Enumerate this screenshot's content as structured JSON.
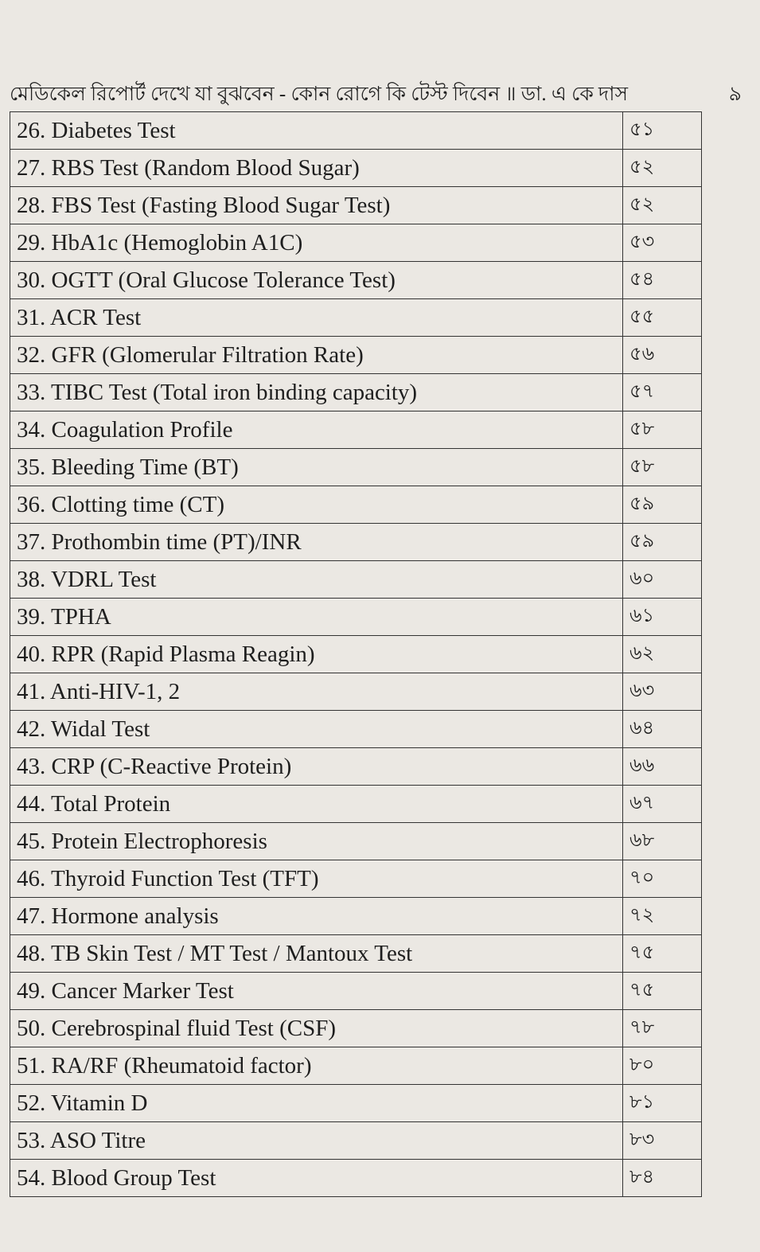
{
  "header": {
    "title": "মেডিকেল রিপোর্ট দেখে যা বুঝবেন - কোন রোগে কি টেস্ট দিবেন ॥ ডা. এ কে দাস",
    "page": "৯"
  },
  "table": {
    "rows": [
      [
        "26. Diabetes Test",
        "৫১"
      ],
      [
        "27. RBS Test (Random Blood Sugar)",
        "৫২"
      ],
      [
        "28. FBS Test (Fasting Blood Sugar Test)",
        "৫২"
      ],
      [
        "29. HbA1c (Hemoglobin A1C)",
        "৫৩"
      ],
      [
        "30. OGTT (Oral Glucose Tolerance Test)",
        "৫৪"
      ],
      [
        "31. ACR Test",
        "৫৫"
      ],
      [
        "32. GFR (Glomerular Filtration Rate)",
        "৫৬"
      ],
      [
        "33. TIBC Test (Total iron binding capacity)",
        "৫৭"
      ],
      [
        "34. Coagulation Profile",
        "৫৮"
      ],
      [
        "35. Bleeding Time (BT)",
        "৫৮"
      ],
      [
        "36. Clotting time (CT)",
        "৫৯"
      ],
      [
        "37. Prothombin time (PT)/INR",
        "৫৯"
      ],
      [
        "38. VDRL Test",
        "৬০"
      ],
      [
        "39. TPHA",
        "৬১"
      ],
      [
        "40. RPR (Rapid Plasma Reagin)",
        "৬২"
      ],
      [
        "41. Anti-HIV-1, 2",
        "৬৩"
      ],
      [
        "42. Widal Test",
        "৬৪"
      ],
      [
        "43. CRP (C-Reactive Protein)",
        "৬৬"
      ],
      [
        "44. Total Protein",
        "৬৭"
      ],
      [
        "45. Protein Electrophoresis",
        "৬৮"
      ],
      [
        "46. Thyroid Function Test (TFT)",
        "৭০"
      ],
      [
        "47. Hormone analysis",
        "৭২"
      ],
      [
        "48. TB Skin Test / MT Test / Mantoux Test",
        "৭৫"
      ],
      [
        "49. Cancer Marker Test",
        "৭৫"
      ],
      [
        "50. Cerebrospinal fluid Test (CSF)",
        "৭৮"
      ],
      [
        "51. RA/RF (Rheumatoid factor)",
        "৮০"
      ],
      [
        "52. Vitamin D",
        "৮১"
      ],
      [
        "53. ASO Titre",
        "৮৩"
      ],
      [
        "54. Blood Group Test",
        "৮৪"
      ]
    ]
  }
}
